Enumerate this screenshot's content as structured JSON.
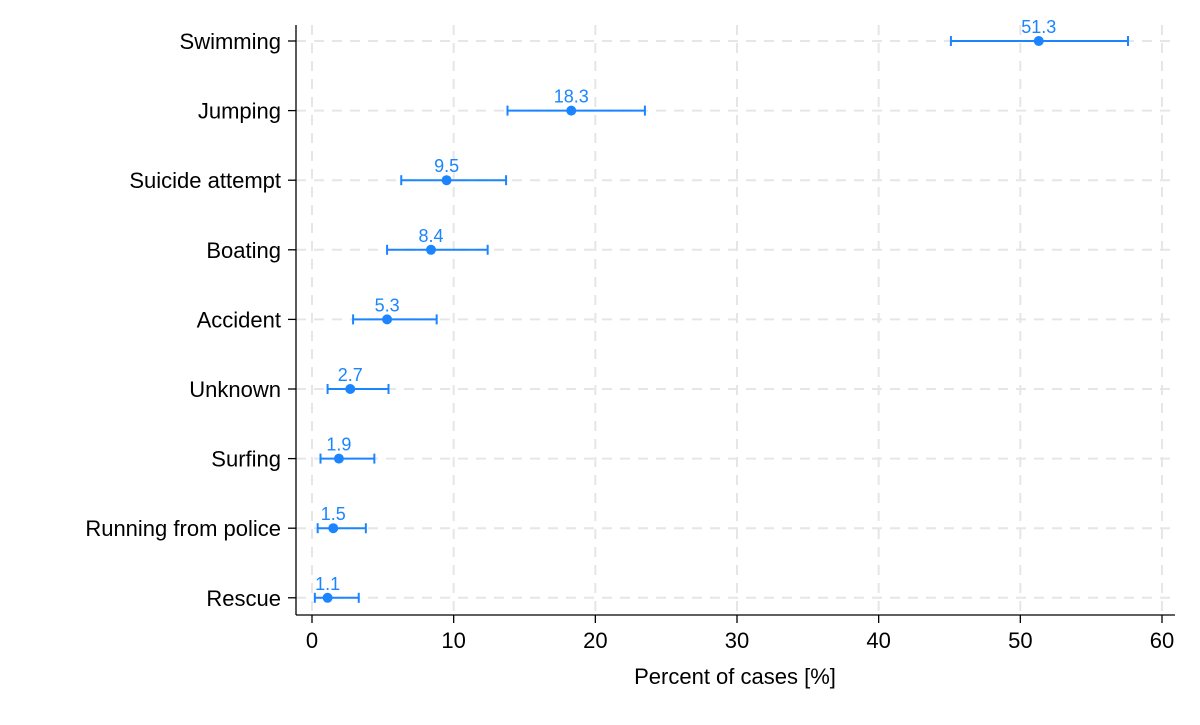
{
  "chart_data": {
    "type": "scatter",
    "subtype": "dot-with-error-bars",
    "title": "",
    "xlabel": "Percent of cases [%]",
    "ylabel": "",
    "xlim": [
      0,
      60
    ],
    "xticks": [
      0,
      10,
      20,
      30,
      40,
      50,
      60
    ],
    "grid": true,
    "color": "#1a85ff",
    "categories": [
      "Swimming",
      "Jumping",
      "Suicide attempt",
      "Boating",
      "Accident",
      "Unknown",
      "Surfing",
      "Running from police",
      "Rescue"
    ],
    "values": [
      51.3,
      18.3,
      9.5,
      8.4,
      5.3,
      2.7,
      1.9,
      1.5,
      1.1
    ],
    "labels": [
      "51.3",
      "18.3",
      "9.5",
      "8.4",
      "5.3",
      "2.7",
      "1.9",
      "1.5",
      "1.1"
    ],
    "ci_low": [
      45.1,
      13.8,
      6.3,
      5.3,
      2.9,
      1.1,
      0.6,
      0.4,
      0.2
    ],
    "ci_high": [
      57.6,
      23.5,
      13.7,
      12.4,
      8.8,
      5.4,
      4.4,
      3.8,
      3.3
    ]
  }
}
